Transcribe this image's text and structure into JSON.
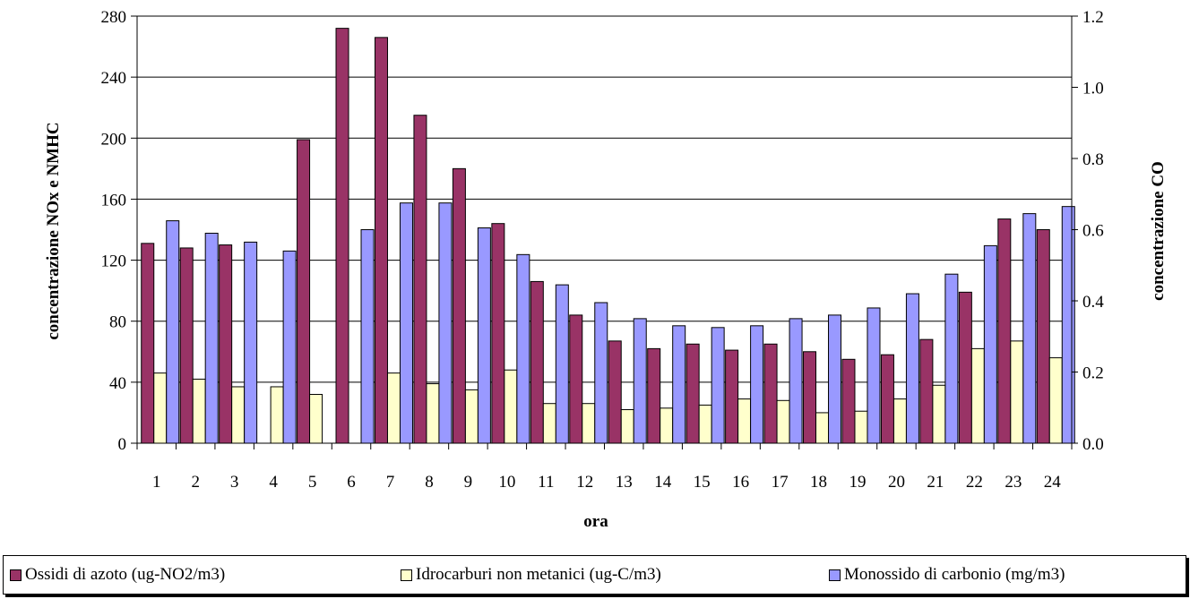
{
  "chart_data": {
    "type": "bar",
    "xlabel": "ora",
    "ylabel_left": "concentrazione NOx e NMHC",
    "ylabel_right": "concentrazione CO",
    "ylim_left": [
      0,
      280
    ],
    "ylim_right": [
      0,
      1.2
    ],
    "yticks_left": [
      "0",
      "40",
      "80",
      "120",
      "160",
      "200",
      "240",
      "280"
    ],
    "yticks_right": [
      "0.0",
      "0.2",
      "0.4",
      "0.6",
      "0.8",
      "1.0",
      "1.2"
    ],
    "grid": true,
    "legend_position": "bottom",
    "categories": [
      "1",
      "2",
      "3",
      "4",
      "5",
      "6",
      "7",
      "8",
      "9",
      "10",
      "11",
      "12",
      "13",
      "14",
      "15",
      "16",
      "17",
      "18",
      "19",
      "20",
      "21",
      "22",
      "23",
      "24"
    ],
    "series": [
      {
        "name": "Ossidi di azoto (ug-NO2/m3)",
        "axis": "left",
        "color": "#993366",
        "values": [
          131,
          128,
          130,
          null,
          199,
          272,
          266,
          215,
          180,
          144,
          106,
          84,
          67,
          62,
          65,
          61,
          65,
          60,
          55,
          58,
          68,
          99,
          147,
          140
        ]
      },
      {
        "name": "Idrocarburi non metanici (ug-C/m3)",
        "axis": "left",
        "color": "#ffffcc",
        "values": [
          46,
          42,
          37,
          37,
          32,
          null,
          46,
          39,
          35,
          48,
          26,
          26,
          22,
          23,
          25,
          29,
          28,
          20,
          21,
          29,
          38,
          62,
          67,
          56
        ]
      },
      {
        "name": "Monossido di carbonio (mg/m3)",
        "axis": "right",
        "color": "#9999ff",
        "values": [
          0.625,
          0.59,
          0.565,
          0.54,
          null,
          0.6,
          0.675,
          0.675,
          0.605,
          0.53,
          0.445,
          0.395,
          0.35,
          0.33,
          0.325,
          0.33,
          0.35,
          0.36,
          0.38,
          0.42,
          0.475,
          0.555,
          0.645,
          0.665
        ]
      }
    ]
  }
}
